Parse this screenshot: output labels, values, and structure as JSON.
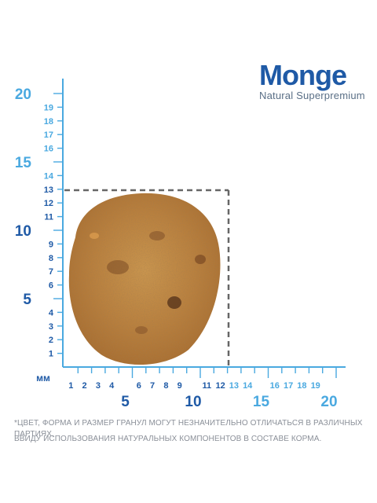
{
  "brand": {
    "name": "Monge",
    "tagline": "Natural Superpremium",
    "color": "#1f5aa6"
  },
  "ruler": {
    "unit": "мм",
    "color": "#4aa9e0",
    "small_color": "#1f5aa6",
    "label_color": "#4aa9e0",
    "vertical_small_ticks": [
      1,
      2,
      3,
      4,
      6,
      7,
      8,
      9,
      11,
      12,
      13,
      14,
      16,
      17,
      18,
      19
    ],
    "vertical_major_labels": [
      5,
      10,
      15,
      20
    ],
    "horizontal_small_ticks": [
      1,
      2,
      3,
      4,
      6,
      7,
      8,
      9,
      11,
      12,
      13,
      14,
      16,
      17,
      18,
      19
    ],
    "horizontal_major_labels": [
      5,
      10,
      15,
      20
    ]
  },
  "kibble": {
    "width_mm": 12,
    "height_mm": 13,
    "color": "#c08848",
    "outline_color": "#666666"
  },
  "disclaimer": {
    "line1": "*ЦВЕТ, ФОРМА И РАЗМЕР ГРАНУЛ МОГУТ НЕЗНАЧИТЕЛЬНО ОТЛИЧАТЬСЯ В РАЗЛИЧНЫХ ПАРТИЯХ,",
    "line2": "ВВИДУ ИСПОЛЬЗОВАНИЯ НАТУРАЛЬНЫХ КОМПОНЕНТОВ В СОСТАВЕ КОРМА."
  }
}
